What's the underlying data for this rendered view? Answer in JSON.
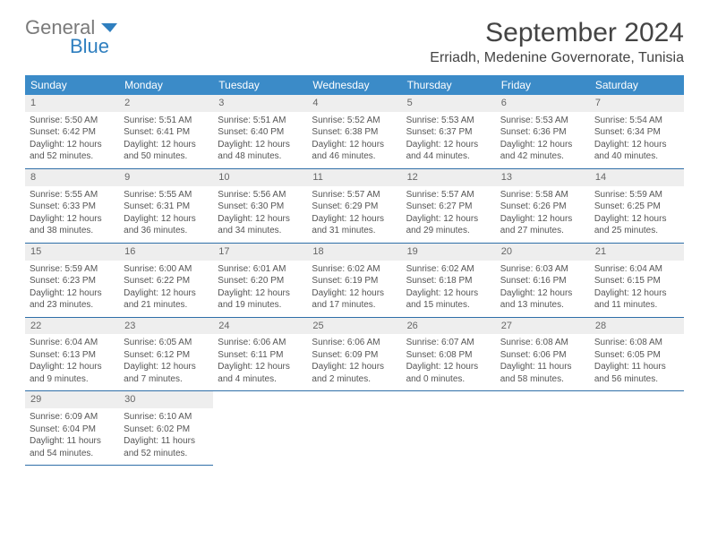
{
  "brand": {
    "general": "General",
    "blue": "Blue"
  },
  "title": "September 2024",
  "location": "Erriadh, Medenine Governorate, Tunisia",
  "colors": {
    "header_bg": "#3b8bc8",
    "header_text": "#ffffff",
    "daynum_bg": "#eeeeee",
    "border": "#2f6fa8",
    "text": "#555555"
  },
  "weekdays": [
    "Sunday",
    "Monday",
    "Tuesday",
    "Wednesday",
    "Thursday",
    "Friday",
    "Saturday"
  ],
  "weeks": [
    {
      "nums": [
        "1",
        "2",
        "3",
        "4",
        "5",
        "6",
        "7"
      ],
      "cells": [
        {
          "sr": "Sunrise: 5:50 AM",
          "ss": "Sunset: 6:42 PM",
          "dl": "Daylight: 12 hours and 52 minutes."
        },
        {
          "sr": "Sunrise: 5:51 AM",
          "ss": "Sunset: 6:41 PM",
          "dl": "Daylight: 12 hours and 50 minutes."
        },
        {
          "sr": "Sunrise: 5:51 AM",
          "ss": "Sunset: 6:40 PM",
          "dl": "Daylight: 12 hours and 48 minutes."
        },
        {
          "sr": "Sunrise: 5:52 AM",
          "ss": "Sunset: 6:38 PM",
          "dl": "Daylight: 12 hours and 46 minutes."
        },
        {
          "sr": "Sunrise: 5:53 AM",
          "ss": "Sunset: 6:37 PM",
          "dl": "Daylight: 12 hours and 44 minutes."
        },
        {
          "sr": "Sunrise: 5:53 AM",
          "ss": "Sunset: 6:36 PM",
          "dl": "Daylight: 12 hours and 42 minutes."
        },
        {
          "sr": "Sunrise: 5:54 AM",
          "ss": "Sunset: 6:34 PM",
          "dl": "Daylight: 12 hours and 40 minutes."
        }
      ]
    },
    {
      "nums": [
        "8",
        "9",
        "10",
        "11",
        "12",
        "13",
        "14"
      ],
      "cells": [
        {
          "sr": "Sunrise: 5:55 AM",
          "ss": "Sunset: 6:33 PM",
          "dl": "Daylight: 12 hours and 38 minutes."
        },
        {
          "sr": "Sunrise: 5:55 AM",
          "ss": "Sunset: 6:31 PM",
          "dl": "Daylight: 12 hours and 36 minutes."
        },
        {
          "sr": "Sunrise: 5:56 AM",
          "ss": "Sunset: 6:30 PM",
          "dl": "Daylight: 12 hours and 34 minutes."
        },
        {
          "sr": "Sunrise: 5:57 AM",
          "ss": "Sunset: 6:29 PM",
          "dl": "Daylight: 12 hours and 31 minutes."
        },
        {
          "sr": "Sunrise: 5:57 AM",
          "ss": "Sunset: 6:27 PM",
          "dl": "Daylight: 12 hours and 29 minutes."
        },
        {
          "sr": "Sunrise: 5:58 AM",
          "ss": "Sunset: 6:26 PM",
          "dl": "Daylight: 12 hours and 27 minutes."
        },
        {
          "sr": "Sunrise: 5:59 AM",
          "ss": "Sunset: 6:25 PM",
          "dl": "Daylight: 12 hours and 25 minutes."
        }
      ]
    },
    {
      "nums": [
        "15",
        "16",
        "17",
        "18",
        "19",
        "20",
        "21"
      ],
      "cells": [
        {
          "sr": "Sunrise: 5:59 AM",
          "ss": "Sunset: 6:23 PM",
          "dl": "Daylight: 12 hours and 23 minutes."
        },
        {
          "sr": "Sunrise: 6:00 AM",
          "ss": "Sunset: 6:22 PM",
          "dl": "Daylight: 12 hours and 21 minutes."
        },
        {
          "sr": "Sunrise: 6:01 AM",
          "ss": "Sunset: 6:20 PM",
          "dl": "Daylight: 12 hours and 19 minutes."
        },
        {
          "sr": "Sunrise: 6:02 AM",
          "ss": "Sunset: 6:19 PM",
          "dl": "Daylight: 12 hours and 17 minutes."
        },
        {
          "sr": "Sunrise: 6:02 AM",
          "ss": "Sunset: 6:18 PM",
          "dl": "Daylight: 12 hours and 15 minutes."
        },
        {
          "sr": "Sunrise: 6:03 AM",
          "ss": "Sunset: 6:16 PM",
          "dl": "Daylight: 12 hours and 13 minutes."
        },
        {
          "sr": "Sunrise: 6:04 AM",
          "ss": "Sunset: 6:15 PM",
          "dl": "Daylight: 12 hours and 11 minutes."
        }
      ]
    },
    {
      "nums": [
        "22",
        "23",
        "24",
        "25",
        "26",
        "27",
        "28"
      ],
      "cells": [
        {
          "sr": "Sunrise: 6:04 AM",
          "ss": "Sunset: 6:13 PM",
          "dl": "Daylight: 12 hours and 9 minutes."
        },
        {
          "sr": "Sunrise: 6:05 AM",
          "ss": "Sunset: 6:12 PM",
          "dl": "Daylight: 12 hours and 7 minutes."
        },
        {
          "sr": "Sunrise: 6:06 AM",
          "ss": "Sunset: 6:11 PM",
          "dl": "Daylight: 12 hours and 4 minutes."
        },
        {
          "sr": "Sunrise: 6:06 AM",
          "ss": "Sunset: 6:09 PM",
          "dl": "Daylight: 12 hours and 2 minutes."
        },
        {
          "sr": "Sunrise: 6:07 AM",
          "ss": "Sunset: 6:08 PM",
          "dl": "Daylight: 12 hours and 0 minutes."
        },
        {
          "sr": "Sunrise: 6:08 AM",
          "ss": "Sunset: 6:06 PM",
          "dl": "Daylight: 11 hours and 58 minutes."
        },
        {
          "sr": "Sunrise: 6:08 AM",
          "ss": "Sunset: 6:05 PM",
          "dl": "Daylight: 11 hours and 56 minutes."
        }
      ]
    },
    {
      "nums": [
        "29",
        "30",
        "",
        "",
        "",
        "",
        ""
      ],
      "cells": [
        {
          "sr": "Sunrise: 6:09 AM",
          "ss": "Sunset: 6:04 PM",
          "dl": "Daylight: 11 hours and 54 minutes."
        },
        {
          "sr": "Sunrise: 6:10 AM",
          "ss": "Sunset: 6:02 PM",
          "dl": "Daylight: 11 hours and 52 minutes."
        },
        null,
        null,
        null,
        null,
        null
      ]
    }
  ]
}
